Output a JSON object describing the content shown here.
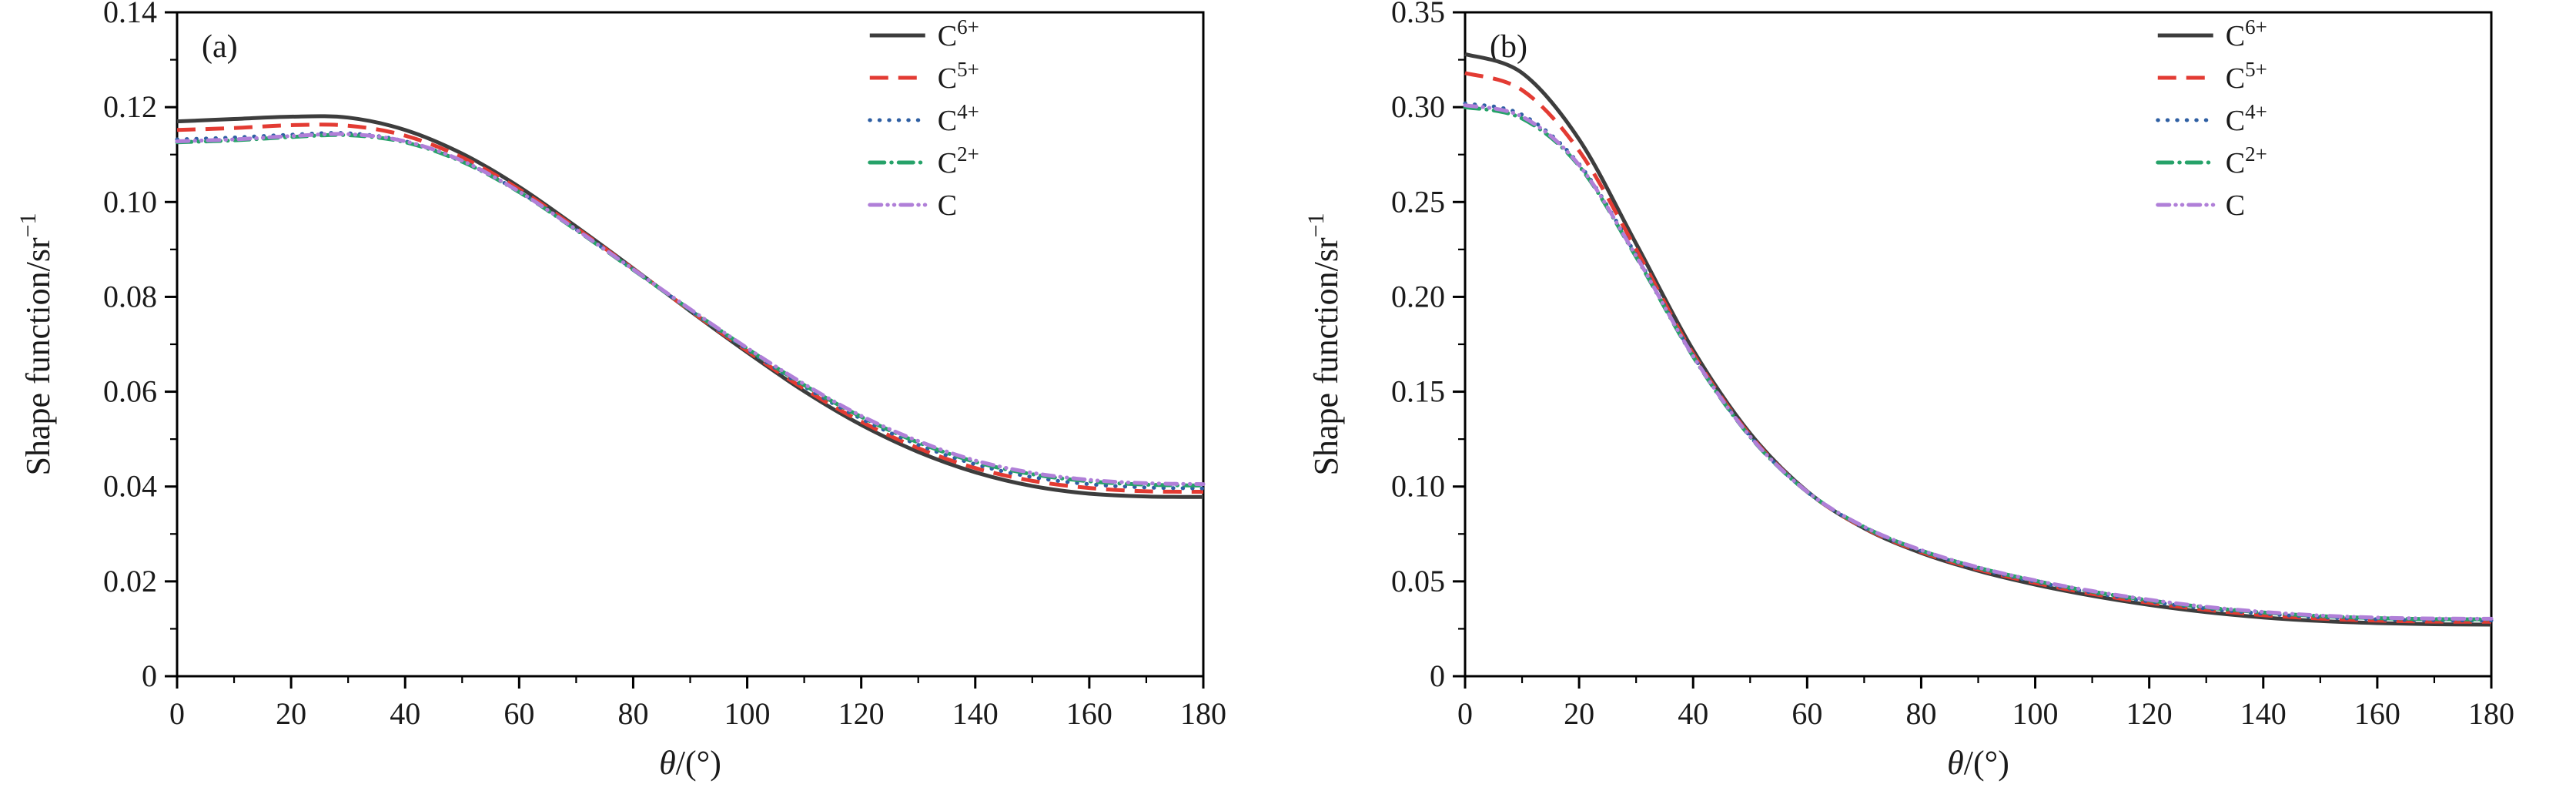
{
  "figure": {
    "background": "#ffffff",
    "frame_color": "#000000",
    "text_color": "#1a1a1a"
  },
  "chart_data": [
    {
      "type": "line",
      "panel_label": "(a)",
      "xlabel_italic": "θ",
      "xlabel_rest": "/(°)",
      "ylabel_text": "Shape function/sr",
      "ylabel_sup": "−1",
      "xlim": [
        0,
        180
      ],
      "ylim": [
        0,
        0.14
      ],
      "x_major_ticks": [
        0,
        20,
        40,
        60,
        80,
        100,
        120,
        140,
        160,
        180
      ],
      "x_tick_labels": [
        "0",
        "20",
        "40",
        "60",
        "80",
        "100",
        "120",
        "140",
        "160",
        "180"
      ],
      "y_major_ticks": [
        0,
        0.02,
        0.04,
        0.06,
        0.08,
        0.1,
        0.12,
        0.14
      ],
      "y_tick_labels": [
        "0",
        "0.02",
        "0.04",
        "0.06",
        "0.08",
        "0.10",
        "0.12",
        "0.14"
      ],
      "grid": false,
      "legend_position": "top-right",
      "x": [
        0,
        10,
        20,
        30,
        40,
        50,
        60,
        70,
        80,
        90,
        100,
        110,
        120,
        130,
        140,
        150,
        160,
        170,
        180
      ],
      "series": [
        {
          "id": "c6plus",
          "label_base": "C",
          "label_sup": "6+",
          "color": "#3d3d3d",
          "linestyle": "solid",
          "values": [
            0.117,
            0.1175,
            0.118,
            0.1178,
            0.1152,
            0.1102,
            0.1032,
            0.0948,
            0.086,
            0.077,
            0.0683,
            0.0601,
            0.053,
            0.0473,
            0.043,
            0.0401,
            0.0385,
            0.0379,
            0.0378
          ]
        },
        {
          "id": "c5plus",
          "label_base": "C",
          "label_sup": "5+",
          "color": "#e33b33",
          "linestyle": "dashed",
          "values": [
            0.1152,
            0.1156,
            0.1162,
            0.1161,
            0.114,
            0.1094,
            0.1027,
            0.0945,
            0.0859,
            0.0771,
            0.0686,
            0.0606,
            0.0537,
            0.0481,
            0.0439,
            0.0412,
            0.0397,
            0.039,
            0.0389
          ]
        },
        {
          "id": "c4plus",
          "label_base": "C",
          "label_sup": "4+",
          "color": "#2e5fa3",
          "linestyle": "dotted",
          "values": [
            0.1132,
            0.1136,
            0.1142,
            0.1145,
            0.1128,
            0.1086,
            0.1022,
            0.0942,
            0.0858,
            0.0772,
            0.0689,
            0.0611,
            0.0543,
            0.0488,
            0.0447,
            0.042,
            0.0405,
            0.0398,
            0.0396
          ]
        },
        {
          "id": "c2plus",
          "label_base": "C",
          "label_sup": "2+",
          "color": "#26a269",
          "linestyle": "dashdot",
          "values": [
            0.1126,
            0.113,
            0.1137,
            0.1141,
            0.1126,
            0.1085,
            0.1021,
            0.0941,
            0.0857,
            0.0773,
            0.0691,
            0.0614,
            0.0547,
            0.0493,
            0.0452,
            0.0426,
            0.0411,
            0.0404,
            0.0402
          ]
        },
        {
          "id": "c",
          "label_base": "C",
          "label_sup": "",
          "color": "#b07fd8",
          "linestyle": "dashdotdot",
          "values": [
            0.1128,
            0.1132,
            0.1139,
            0.1143,
            0.1128,
            0.1087,
            0.1022,
            0.0942,
            0.0858,
            0.0774,
            0.0692,
            0.0616,
            0.0549,
            0.0496,
            0.0455,
            0.0429,
            0.0414,
            0.0407,
            0.0405
          ]
        }
      ]
    },
    {
      "type": "line",
      "panel_label": "(b)",
      "xlabel_italic": "θ",
      "xlabel_rest": "/(°)",
      "ylabel_text": "Shape function/sr",
      "ylabel_sup": "−1",
      "xlim": [
        0,
        180
      ],
      "ylim": [
        0,
        0.35
      ],
      "x_major_ticks": [
        0,
        20,
        40,
        60,
        80,
        100,
        120,
        140,
        160,
        180
      ],
      "x_tick_labels": [
        "0",
        "20",
        "40",
        "60",
        "80",
        "100",
        "120",
        "140",
        "160",
        "180"
      ],
      "y_major_ticks": [
        0,
        0.05,
        0.1,
        0.15,
        0.2,
        0.25,
        0.3,
        0.35
      ],
      "y_tick_labels": [
        "0",
        "0.05",
        "0.10",
        "0.15",
        "0.20",
        "0.25",
        "0.30",
        "0.35"
      ],
      "grid": false,
      "legend_position": "top-right",
      "x": [
        0,
        10,
        20,
        30,
        40,
        50,
        60,
        70,
        80,
        90,
        100,
        110,
        120,
        130,
        140,
        150,
        160,
        170,
        180
      ],
      "series": [
        {
          "id": "c6plus",
          "label_base": "C",
          "label_sup": "6+",
          "color": "#3d3d3d",
          "linestyle": "solid",
          "values": [
            0.328,
            0.318,
            0.283,
            0.228,
            0.172,
            0.128,
            0.0975,
            0.078,
            0.065,
            0.0556,
            0.0483,
            0.0424,
            0.0376,
            0.0338,
            0.031,
            0.0291,
            0.028,
            0.0274,
            0.0272
          ]
        },
        {
          "id": "c5plus",
          "label_base": "C",
          "label_sup": "5+",
          "color": "#e33b33",
          "linestyle": "dashed",
          "values": [
            0.318,
            0.309,
            0.277,
            0.225,
            0.17,
            0.127,
            0.0972,
            0.0782,
            0.0655,
            0.0563,
            0.0492,
            0.0434,
            0.0387,
            0.035,
            0.0322,
            0.0304,
            0.0293,
            0.0288,
            0.0287
          ]
        },
        {
          "id": "c4plus",
          "label_base": "C",
          "label_sup": "4+",
          "color": "#2e5fa3",
          "linestyle": "dotted",
          "values": [
            0.302,
            0.296,
            0.27,
            0.222,
            0.169,
            0.1265,
            0.0972,
            0.0785,
            0.066,
            0.0568,
            0.0498,
            0.0441,
            0.0394,
            0.0357,
            0.033,
            0.0311,
            0.03,
            0.0295,
            0.0294
          ]
        },
        {
          "id": "c2plus",
          "label_base": "C",
          "label_sup": "2+",
          "color": "#26a269",
          "linestyle": "dashdot",
          "values": [
            0.3,
            0.294,
            0.269,
            0.221,
            0.1685,
            0.1262,
            0.0972,
            0.0787,
            0.0663,
            0.0572,
            0.0503,
            0.0446,
            0.04,
            0.0363,
            0.0336,
            0.0317,
            0.0306,
            0.0301,
            0.03
          ]
        },
        {
          "id": "c",
          "label_base": "C",
          "label_sup": "",
          "color": "#b07fd8",
          "linestyle": "dashdotdot",
          "values": [
            0.301,
            0.295,
            0.2695,
            0.2215,
            0.1688,
            0.1264,
            0.0973,
            0.0788,
            0.0665,
            0.0574,
            0.0505,
            0.0449,
            0.0403,
            0.0366,
            0.0339,
            0.032,
            0.0309,
            0.0304,
            0.0303
          ]
        }
      ]
    }
  ]
}
